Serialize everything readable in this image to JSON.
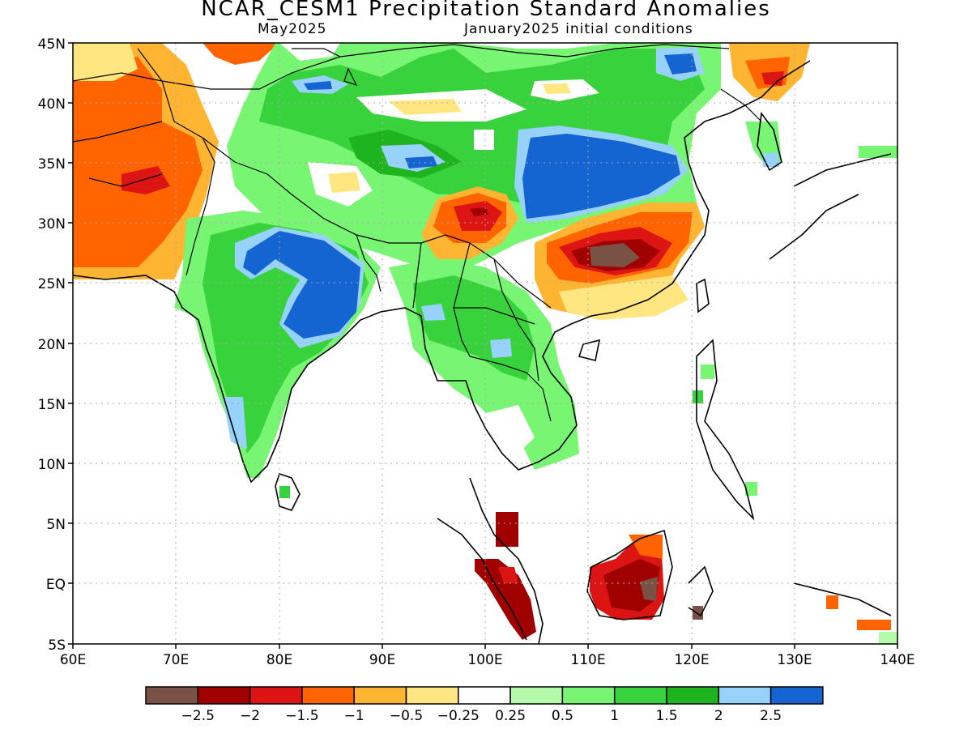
{
  "header": {
    "title": "NCAR_CESM1 Precipitation Standard Anomalies",
    "target_month": "May2025",
    "initial_conditions": "January2025 initial conditions"
  },
  "map": {
    "lat_labels": [
      "45N",
      "40N",
      "35N",
      "30N",
      "25N",
      "20N",
      "15N",
      "10N",
      "5N",
      "EQ",
      "5S"
    ],
    "lon_labels": [
      "60E",
      "70E",
      "80E",
      "90E",
      "100E",
      "110E",
      "120E",
      "130E",
      "140E"
    ],
    "lat_range": [
      -5,
      45
    ],
    "lon_range": [
      60,
      140
    ],
    "grid": "dotted"
  },
  "legend": {
    "colors": [
      "#7a5145",
      "#a00000",
      "#dd1414",
      "#ff6400",
      "#ffb432",
      "#ffe680",
      "#ffffff",
      "#b4faaa",
      "#78f573",
      "#37d23c",
      "#1eb41e",
      "#96d2fa",
      "#1464d2"
    ],
    "labels": [
      "-2.5",
      "-2",
      "-1.5",
      "-1",
      "-0.5",
      "-0.25",
      "0.25",
      "0.5",
      "1",
      "1.5",
      "2",
      "2.5"
    ]
  }
}
